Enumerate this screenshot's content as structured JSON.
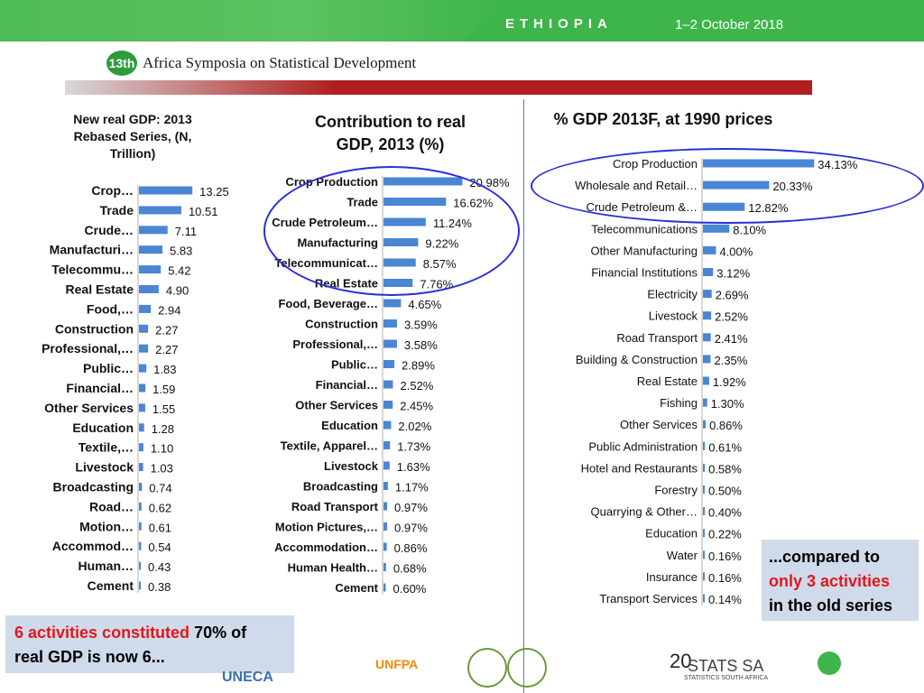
{
  "header": {
    "country": "ETHIOPIA",
    "dates": "1–2 October 2018",
    "logo_number": "13th",
    "symposium": "Africa Symposia on Statistical Development"
  },
  "chart_data": [
    {
      "type": "bar",
      "orientation": "horizontal",
      "title": "New real GDP: 2013 Rebased Series, (N, Trillion)",
      "categories": [
        "Crop…",
        "Trade",
        "Crude…",
        "Manufacturi…",
        "Telecommu…",
        "Real Estate",
        "Food,…",
        "Construction",
        "Professional,…",
        "Public…",
        "Financial…",
        "Other Services",
        "Education",
        "Textile,…",
        "Livestock",
        "Broadcasting",
        "Road…",
        "Motion…",
        "Accommod…",
        "Human…",
        "Cement"
      ],
      "values": [
        13.25,
        10.51,
        7.11,
        5.83,
        5.42,
        4.9,
        2.94,
        2.27,
        2.27,
        1.83,
        1.59,
        1.55,
        1.28,
        1.1,
        1.03,
        0.74,
        0.62,
        0.61,
        0.54,
        0.43,
        0.38
      ],
      "value_labels": [
        "13.25",
        "10.51",
        "7.11",
        "5.83",
        "5.42",
        "4.90",
        "2.94",
        "2.27",
        "2.27",
        "1.83",
        "1.59",
        "1.55",
        "1.28",
        "1.10",
        "1.03",
        "0.74",
        "0.62",
        "0.61",
        "0.54",
        "0.43",
        "0.38"
      ],
      "xlim": [
        0,
        15
      ],
      "grid": false,
      "bar_color": "#4a86d4"
    },
    {
      "type": "bar",
      "orientation": "horizontal",
      "title": "Contribution to real GDP, 2013 (%)",
      "categories": [
        "Crop Production",
        "Trade",
        "Crude Petroleum…",
        "Manufacturing",
        "Telecommunicat…",
        "Real Estate",
        "Food, Beverage…",
        "Construction",
        "Professional,…",
        "Public…",
        "Financial…",
        "Other Services",
        "Education",
        "Textile, Apparel…",
        "Livestock",
        "Broadcasting",
        "Road Transport",
        "Motion Pictures,…",
        "Accommodation…",
        "Human Health…",
        "Cement"
      ],
      "values": [
        20.98,
        16.62,
        11.24,
        9.22,
        8.57,
        7.76,
        4.65,
        3.59,
        3.58,
        2.89,
        2.52,
        2.45,
        2.02,
        1.73,
        1.63,
        1.17,
        0.97,
        0.97,
        0.86,
        0.68,
        0.6
      ],
      "value_labels": [
        "20.98%",
        "16.62%",
        "11.24%",
        "9.22%",
        "8.57%",
        "7.76%",
        "4.65%",
        "3.59%",
        "3.58%",
        "2.89%",
        "2.52%",
        "2.45%",
        "2.02%",
        "1.73%",
        "1.63%",
        "1.17%",
        "0.97%",
        "0.97%",
        "0.86%",
        "0.68%",
        "0.60%"
      ],
      "xlim": [
        0,
        24
      ],
      "grid": false,
      "bar_color": "#4a86d4"
    },
    {
      "type": "bar",
      "orientation": "horizontal",
      "title": "% GDP 2013F, at 1990 prices",
      "categories": [
        "Crop Production",
        "Wholesale and Retail…",
        "Crude Petroleum &…",
        "Telecommunications",
        "Other Manufacturing",
        "Financial Institutions",
        "Electricity",
        "Livestock",
        "Road Transport",
        "Building & Construction",
        "Real Estate",
        "Fishing",
        "Other Services",
        "Public Administration",
        "Hotel and Restaurants",
        "Forestry",
        "Quarrying & Other…",
        "Education",
        "Water",
        "Insurance",
        "Transport Services"
      ],
      "values": [
        34.13,
        20.33,
        12.82,
        8.1,
        4.0,
        3.12,
        2.69,
        2.52,
        2.41,
        2.35,
        1.92,
        1.3,
        0.86,
        0.61,
        0.58,
        0.5,
        0.4,
        0.22,
        0.16,
        0.16,
        0.14
      ],
      "value_labels": [
        "34.13%",
        "20.33%",
        "12.82%",
        "8.10%",
        "4.00%",
        "3.12%",
        "2.69%",
        "2.52%",
        "2.41%",
        "2.35%",
        "1.92%",
        "1.30%",
        "0.86%",
        "0.61%",
        "0.58%",
        "0.50%",
        "0.40%",
        "0.22%",
        "0.16%",
        "0.16%",
        "0.14%"
      ],
      "xlim": [
        0,
        36
      ],
      "grid": false,
      "bar_color": "#4a86d4"
    }
  ],
  "callouts": {
    "right_line1": "...compared to",
    "right_line2": "only 3 activities",
    "right_line3": "in the old series",
    "left_red": "6 activities constituted",
    "left_black1": " 70% of",
    "left_line2": "real GDP is now 6..."
  },
  "footer": {
    "page_number": "20",
    "uneca": "UNECA",
    "unfpa": "UNFPA",
    "statssa": "STATS SA",
    "statssa_sub": "STATISTICS SOUTH AFRICA"
  },
  "colors": {
    "banner": "#3db54a",
    "bars": "#4a86d4",
    "highlight_ring": "#2a2fd6",
    "callout_bg": "#cfdbea",
    "emphasis": "#e4161b"
  }
}
